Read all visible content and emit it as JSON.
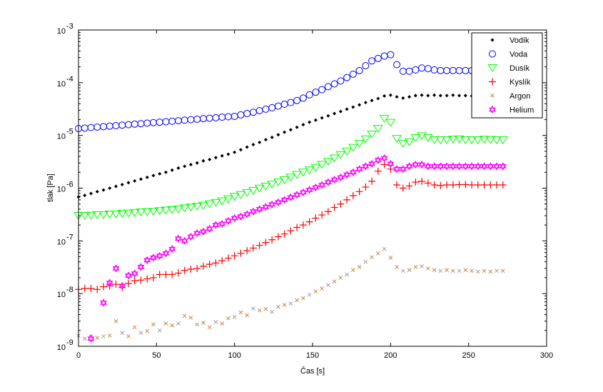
{
  "chart_data": {
    "type": "scatter",
    "xlabel": "Čas [s]",
    "ylabel": "tlak [Pa]",
    "xlim": [
      0,
      300
    ],
    "ylim": [
      1e-09,
      0.001
    ],
    "yscale": "log",
    "grid": false,
    "legend_position": "top-right",
    "x_ticks": [
      "0",
      "50",
      "100",
      "150",
      "200",
      "250",
      "300"
    ],
    "y_ticks": [
      "-9",
      "-8",
      "-7",
      "-6",
      "-5",
      "-4",
      "-3"
    ],
    "y_tick_base": "10",
    "x": [
      0,
      4,
      8,
      12,
      16,
      20,
      24,
      28,
      32,
      36,
      40,
      44,
      48,
      52,
      56,
      60,
      64,
      68,
      72,
      76,
      80,
      84,
      88,
      92,
      96,
      100,
      104,
      108,
      112,
      116,
      120,
      124,
      128,
      132,
      136,
      140,
      144,
      148,
      152,
      156,
      160,
      164,
      168,
      172,
      176,
      180,
      184,
      188,
      192,
      196,
      200,
      204,
      208,
      212,
      216,
      220,
      224,
      228,
      232,
      236,
      240,
      244,
      248,
      252,
      256,
      260,
      264,
      268,
      272
    ],
    "series": [
      {
        "name": "Vodík",
        "marker": "point",
        "color": "#000000",
        "values": [
          6.8e-07,
          7.3e-07,
          7.9e-07,
          8.6e-07,
          9.2e-07,
          1e-06,
          1.08e-06,
          1.17e-06,
          1.27e-06,
          1.37e-06,
          1.48e-06,
          1.6e-06,
          1.73e-06,
          1.87e-06,
          2e-06,
          2.2e-06,
          2.4e-06,
          2.6e-06,
          2.8e-06,
          3e-06,
          3.3e-06,
          3.5e-06,
          3.8e-06,
          4.1e-06,
          4.4e-06,
          4.8e-06,
          5.35e-06,
          6e-06,
          6.7e-06,
          7.4e-06,
          8.3e-06,
          9.2e-06,
          1.03e-05,
          1.15e-05,
          1.28e-05,
          1.43e-05,
          1.6e-05,
          1.78e-05,
          1.95e-05,
          2.15e-05,
          2.35e-05,
          2.6e-05,
          2.85e-05,
          3.15e-05,
          3.45e-05,
          3.8e-05,
          4.2e-05,
          4.6e-05,
          5e-05,
          5.6e-05,
          5.8e-05,
          5.4e-05,
          5.1e-05,
          5.4e-05,
          5.7e-05,
          5.8e-05,
          5.7e-05,
          5.8e-05,
          5.7e-05,
          5.7e-05,
          5.8e-05,
          5.7e-05,
          5.7e-05,
          5.6e-05,
          5.7e-05,
          5.7e-05,
          5.8e-05,
          5.7e-05,
          5.7e-05
        ]
      },
      {
        "name": "Voda",
        "marker": "circle",
        "color": "#0000ff",
        "values": [
          1.35e-05,
          1.38e-05,
          1.41e-05,
          1.44e-05,
          1.47e-05,
          1.5e-05,
          1.53e-05,
          1.57e-05,
          1.6e-05,
          1.64e-05,
          1.67e-05,
          1.71e-05,
          1.75e-05,
          1.78e-05,
          1.82e-05,
          1.86e-05,
          1.9e-05,
          1.95e-05,
          1.99e-05,
          2.03e-05,
          2.08e-05,
          2.12e-05,
          2.17e-05,
          2.22e-05,
          2.26e-05,
          2.3e-05,
          2.45e-05,
          2.6e-05,
          2.75e-05,
          2.95e-05,
          3.15e-05,
          3.35e-05,
          3.6e-05,
          3.9e-05,
          4.2e-05,
          4.6e-05,
          5.1e-05,
          5.9e-05,
          6.6e-05,
          7.4e-05,
          8.4e-05,
          9.5e-05,
          0.000108,
          0.000125,
          0.000145,
          0.00017,
          0.00021,
          0.00026,
          0.00029,
          0.00032,
          0.00034,
          0.00022,
          0.000165,
          0.000165,
          0.000175,
          0.00019,
          0.000185,
          0.000175,
          0.00017,
          0.00017,
          0.00017,
          0.00017,
          0.00017,
          0.00017,
          0.00017,
          0.00017,
          0.00017,
          0.00017,
          0.00017
        ]
      },
      {
        "name": "Dusík",
        "marker": "triangle-down",
        "color": "#00ff00",
        "values": [
          3e-07,
          3e-07,
          3.05e-07,
          3.1e-07,
          3.1e-07,
          3.2e-07,
          3.2e-07,
          3.3e-07,
          3.35e-07,
          3.4e-07,
          3.5e-07,
          3.55e-07,
          3.6e-07,
          3.7e-07,
          3.8e-07,
          3.9e-07,
          4e-07,
          4.2e-07,
          4.35e-07,
          4.5e-07,
          4.7e-07,
          5e-07,
          5.3e-07,
          5.7e-07,
          6.2e-07,
          6.9e-07,
          7.5e-07,
          8.2e-07,
          9e-07,
          9.9e-07,
          1.08e-06,
          1.18e-06,
          1.3e-06,
          1.43e-06,
          1.6e-06,
          1.8e-06,
          2e-06,
          2.2e-06,
          2.45e-06,
          2.8e-06,
          3.2e-06,
          3.7e-06,
          4.3e-06,
          5e-06,
          5.9e-06,
          7e-06,
          8.5e-06,
          1.05e-05,
          1.35e-05,
          2.1e-05,
          1.75e-05,
          8.7e-06,
          7e-06,
          7.5e-06,
          9e-06,
          9.8e-06,
          9e-06,
          8.2e-06,
          8.2e-06,
          8.2e-06,
          8.4e-06,
          8.5e-06,
          8.2e-06,
          8.2e-06,
          8.2e-06,
          8.4e-06,
          8.3e-06,
          8.2e-06,
          8.2e-06
        ]
      },
      {
        "name": "Kyslík",
        "marker": "plus",
        "color": "#ff0000",
        "values": [
          1.2e-08,
          1.25e-08,
          1.25e-08,
          1.2e-08,
          1.35e-08,
          1.4e-08,
          1.5e-08,
          1.3e-08,
          1.55e-08,
          1.75e-08,
          1.8e-08,
          1.9e-08,
          2e-08,
          2.3e-08,
          2.3e-08,
          2.3e-08,
          2.45e-08,
          2.75e-08,
          2.9e-08,
          3e-08,
          3.3e-08,
          3.6e-08,
          3.8e-08,
          4.2e-08,
          4.7e-08,
          5.2e-08,
          5.8e-08,
          6.5e-08,
          7.3e-08,
          8.2e-08,
          9.3e-08,
          1.05e-07,
          1.2e-07,
          1.35e-07,
          1.55e-07,
          1.8e-07,
          2e-07,
          2.3e-07,
          2.7e-07,
          3.1e-07,
          3.6e-07,
          4.3e-07,
          5e-07,
          6e-07,
          7.2e-07,
          8.6e-07,
          1.05e-06,
          1.35e-06,
          2.1e-06,
          2.8e-06,
          2.3e-06,
          1.15e-06,
          1e-06,
          1.1e-06,
          1.3e-06,
          1.35e-06,
          1.25e-06,
          1.15e-06,
          1.12e-06,
          1.15e-06,
          1.15e-06,
          1.17e-06,
          1.17e-06,
          1.15e-06,
          1.15e-06,
          1.15e-06,
          1.15e-06,
          1.15e-06,
          1.15e-06
        ]
      },
      {
        "name": "Argon",
        "marker": "x",
        "color": "#c8874a",
        "alt_color": "#a0a0a0",
        "values": [
          1.6e-09,
          1.4e-09,
          1.55e-09,
          1.45e-09,
          1.55e-09,
          1.6e-09,
          3e-09,
          1.8e-09,
          1.55e-09,
          2.3e-09,
          1.8e-09,
          1.95e-09,
          2.6e-09,
          2e-09,
          2.7e-09,
          2.5e-09,
          2.7e-09,
          3.8e-09,
          3.5e-09,
          2.6e-09,
          2.8e-09,
          2.3e-09,
          2.9e-09,
          2.7e-09,
          3.4e-09,
          3.6e-09,
          4.4e-09,
          3.9e-09,
          5.2e-09,
          4.8e-09,
          5.1e-09,
          4.5e-09,
          5.6e-09,
          6.1e-09,
          6.5e-09,
          7.5e-09,
          8.2e-09,
          9.5e-09,
          1.1e-08,
          1.25e-08,
          1.45e-08,
          1.7e-08,
          2e-08,
          2.3e-08,
          2.8e-08,
          3.2e-08,
          4e-08,
          4.9e-08,
          5.8e-08,
          7e-08,
          4.8e-08,
          3.2e-08,
          2.7e-08,
          2.8e-08,
          3.2e-08,
          3.3e-08,
          3e-08,
          2.8e-08,
          2.7e-08,
          2.8e-08,
          2.7e-08,
          2.7e-08,
          2.8e-08,
          2.7e-08,
          2.6e-08,
          2.7e-08,
          2.6e-08,
          2.7e-08,
          2.7e-08
        ]
      },
      {
        "name": "Helium",
        "marker": "hexagram",
        "color": "#ff00ff",
        "values": [
          null,
          null,
          1.4e-09,
          null,
          6.7e-09,
          1.6e-08,
          3e-08,
          1.4e-08,
          2.2e-08,
          2.4e-08,
          3.2e-08,
          4.3e-08,
          4.8e-08,
          5.2e-08,
          5.8e-08,
          7e-08,
          1.1e-07,
          1e-07,
          1.2e-07,
          1.4e-07,
          1.5e-07,
          1.7e-07,
          2e-07,
          2.1e-07,
          2.4e-07,
          2.7e-07,
          2.9e-07,
          3.2e-07,
          3.6e-07,
          4e-07,
          4.4e-07,
          4.9e-07,
          5.4e-07,
          6e-07,
          6.7e-07,
          7.5e-07,
          8.3e-07,
          9.3e-07,
          1.03e-06,
          1.15e-06,
          1.3e-06,
          1.45e-06,
          1.6e-06,
          1.8e-06,
          2e-06,
          2.3e-06,
          2.6e-06,
          2.9e-06,
          3.4e-06,
          3.7e-06,
          2.9e-06,
          2.3e-06,
          2.3e-06,
          2.6e-06,
          2.8e-06,
          2.8e-06,
          2.6e-06,
          2.6e-06,
          2.6e-06,
          2.6e-06,
          2.6e-06,
          2.6e-06,
          2.6e-06,
          2.6e-06,
          2.6e-06,
          2.6e-06,
          2.6e-06,
          2.6e-06,
          2.6e-06
        ]
      }
    ]
  }
}
